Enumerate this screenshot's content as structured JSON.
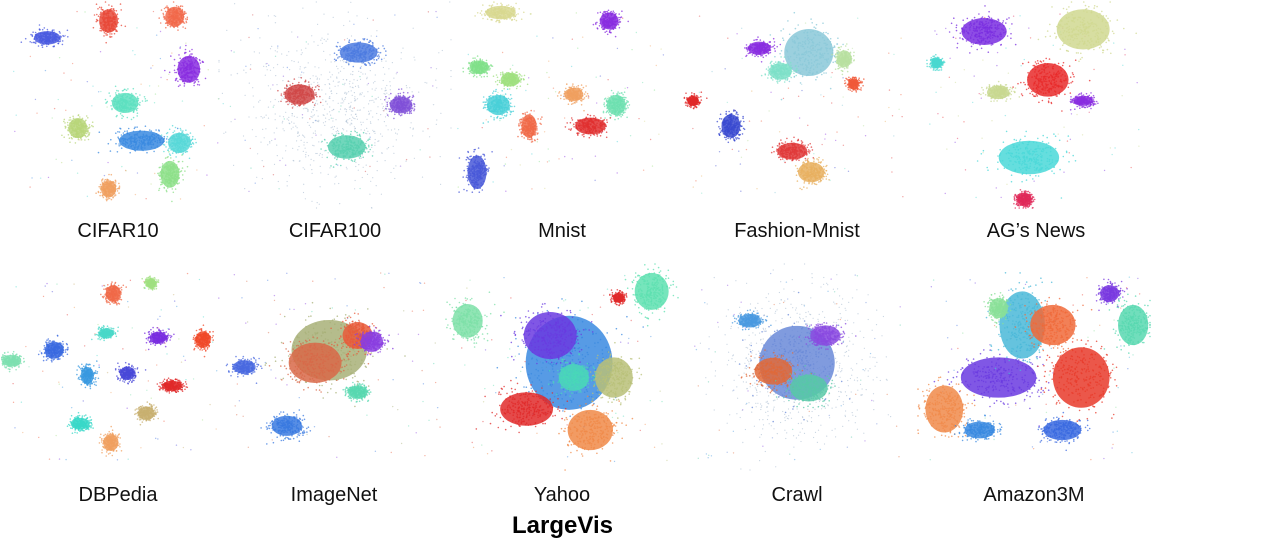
{
  "chart_data": {
    "type": "scatter",
    "title": "LargeVis",
    "panels": [
      {
        "name": "CIFAR10",
        "clusters": [
          {
            "cx": 0.2,
            "cy": 0.18,
            "rx": 0.07,
            "ry": 0.04,
            "color": "#4b5be0"
          },
          {
            "cx": 0.46,
            "cy": 0.1,
            "rx": 0.05,
            "ry": 0.07,
            "color": "#e84a3a"
          },
          {
            "cx": 0.74,
            "cy": 0.08,
            "rx": 0.05,
            "ry": 0.06,
            "color": "#f26a4b"
          },
          {
            "cx": 0.8,
            "cy": 0.33,
            "rx": 0.06,
            "ry": 0.08,
            "color": "#8a2ee0"
          },
          {
            "cx": 0.53,
            "cy": 0.49,
            "rx": 0.07,
            "ry": 0.06,
            "color": "#5ee0c0"
          },
          {
            "cx": 0.33,
            "cy": 0.61,
            "rx": 0.05,
            "ry": 0.06,
            "color": "#b8d67a"
          },
          {
            "cx": 0.6,
            "cy": 0.67,
            "rx": 0.12,
            "ry": 0.06,
            "color": "#3a8ae0"
          },
          {
            "cx": 0.76,
            "cy": 0.68,
            "rx": 0.06,
            "ry": 0.06,
            "color": "#58d8d8"
          },
          {
            "cx": 0.72,
            "cy": 0.83,
            "rx": 0.05,
            "ry": 0.08,
            "color": "#8ee08a"
          },
          {
            "cx": 0.46,
            "cy": 0.9,
            "rx": 0.04,
            "ry": 0.05,
            "color": "#f0a060"
          }
        ]
      },
      {
        "name": "CIFAR100",
        "clusters": [
          {
            "cx": 0.5,
            "cy": 0.5,
            "rx": 0.38,
            "ry": 0.36,
            "color": "#9ab0c8",
            "density": "diffuse"
          },
          {
            "cx": 0.6,
            "cy": 0.25,
            "rx": 0.1,
            "ry": 0.06,
            "color": "#4c7be0"
          },
          {
            "cx": 0.35,
            "cy": 0.45,
            "rx": 0.08,
            "ry": 0.06,
            "color": "#d04848"
          },
          {
            "cx": 0.55,
            "cy": 0.7,
            "rx": 0.1,
            "ry": 0.07,
            "color": "#58d0b0"
          },
          {
            "cx": 0.78,
            "cy": 0.5,
            "rx": 0.06,
            "ry": 0.05,
            "color": "#8050d8"
          }
        ]
      },
      {
        "name": "Mnist",
        "clusters": [
          {
            "cx": 0.24,
            "cy": 0.06,
            "rx": 0.08,
            "ry": 0.04,
            "color": "#d8d890"
          },
          {
            "cx": 0.7,
            "cy": 0.1,
            "rx": 0.05,
            "ry": 0.05,
            "color": "#8a2ee0"
          },
          {
            "cx": 0.15,
            "cy": 0.32,
            "rx": 0.05,
            "ry": 0.04,
            "color": "#80e08a"
          },
          {
            "cx": 0.28,
            "cy": 0.38,
            "rx": 0.05,
            "ry": 0.04,
            "color": "#a0e080"
          },
          {
            "cx": 0.23,
            "cy": 0.5,
            "rx": 0.06,
            "ry": 0.06,
            "color": "#4ad0d8"
          },
          {
            "cx": 0.55,
            "cy": 0.45,
            "rx": 0.05,
            "ry": 0.04,
            "color": "#f0a060"
          },
          {
            "cx": 0.73,
            "cy": 0.5,
            "rx": 0.05,
            "ry": 0.06,
            "color": "#6ee0b0"
          },
          {
            "cx": 0.62,
            "cy": 0.6,
            "rx": 0.08,
            "ry": 0.05,
            "color": "#e03030"
          },
          {
            "cx": 0.36,
            "cy": 0.6,
            "rx": 0.04,
            "ry": 0.07,
            "color": "#f06a48"
          },
          {
            "cx": 0.14,
            "cy": 0.82,
            "rx": 0.05,
            "ry": 0.1,
            "color": "#4858d8"
          }
        ]
      },
      {
        "name": "Fashion-Mnist",
        "clusters": [
          {
            "cx": 0.55,
            "cy": 0.25,
            "rx": 0.13,
            "ry": 0.14,
            "color": "#8ac8d8"
          },
          {
            "cx": 0.34,
            "cy": 0.23,
            "rx": 0.06,
            "ry": 0.04,
            "color": "#8a2ee0"
          },
          {
            "cx": 0.43,
            "cy": 0.34,
            "rx": 0.06,
            "ry": 0.05,
            "color": "#7ee0c8"
          },
          {
            "cx": 0.7,
            "cy": 0.28,
            "rx": 0.04,
            "ry": 0.05,
            "color": "#b8e0a0"
          },
          {
            "cx": 0.74,
            "cy": 0.4,
            "rx": 0.03,
            "ry": 0.03,
            "color": "#f05a3a"
          },
          {
            "cx": 0.06,
            "cy": 0.48,
            "rx": 0.03,
            "ry": 0.03,
            "color": "#e02a2a"
          },
          {
            "cx": 0.22,
            "cy": 0.6,
            "rx": 0.05,
            "ry": 0.07,
            "color": "#3a4ad0"
          },
          {
            "cx": 0.48,
            "cy": 0.72,
            "rx": 0.08,
            "ry": 0.05,
            "color": "#e03a3a"
          },
          {
            "cx": 0.56,
            "cy": 0.82,
            "rx": 0.07,
            "ry": 0.06,
            "color": "#e8b060"
          }
        ]
      },
      {
        "name": "AG’s News",
        "clusters": [
          {
            "cx": 0.28,
            "cy": 0.15,
            "rx": 0.12,
            "ry": 0.08,
            "color": "#7a2ee0"
          },
          {
            "cx": 0.7,
            "cy": 0.14,
            "rx": 0.14,
            "ry": 0.12,
            "color": "#d0d890"
          },
          {
            "cx": 0.55,
            "cy": 0.38,
            "rx": 0.11,
            "ry": 0.1,
            "color": "#e82a2a"
          },
          {
            "cx": 0.08,
            "cy": 0.3,
            "rx": 0.03,
            "ry": 0.03,
            "color": "#4ad8d0"
          },
          {
            "cx": 0.34,
            "cy": 0.44,
            "rx": 0.06,
            "ry": 0.04,
            "color": "#c8d890"
          },
          {
            "cx": 0.7,
            "cy": 0.48,
            "rx": 0.05,
            "ry": 0.03,
            "color": "#8a2ee0"
          },
          {
            "cx": 0.47,
            "cy": 0.75,
            "rx": 0.16,
            "ry": 0.1,
            "color": "#4ad8d8"
          },
          {
            "cx": 0.45,
            "cy": 0.95,
            "rx": 0.04,
            "ry": 0.04,
            "color": "#e02a5a"
          }
        ]
      },
      {
        "name": "DBPedia",
        "clusters": [
          {
            "cx": 0.48,
            "cy": 0.15,
            "rx": 0.04,
            "ry": 0.05,
            "color": "#f06a48"
          },
          {
            "cx": 0.64,
            "cy": 0.1,
            "rx": 0.025,
            "ry": 0.03,
            "color": "#a0e080"
          },
          {
            "cx": 0.45,
            "cy": 0.34,
            "rx": 0.04,
            "ry": 0.03,
            "color": "#4ad8c8"
          },
          {
            "cx": 0.67,
            "cy": 0.36,
            "rx": 0.045,
            "ry": 0.035,
            "color": "#7a2ee0"
          },
          {
            "cx": 0.86,
            "cy": 0.37,
            "rx": 0.04,
            "ry": 0.05,
            "color": "#f04a2a"
          },
          {
            "cx": 0.23,
            "cy": 0.42,
            "rx": 0.05,
            "ry": 0.05,
            "color": "#3a6ae0"
          },
          {
            "cx": 0.05,
            "cy": 0.47,
            "rx": 0.05,
            "ry": 0.035,
            "color": "#7ee0b0"
          },
          {
            "cx": 0.37,
            "cy": 0.54,
            "rx": 0.035,
            "ry": 0.05,
            "color": "#3a9ae0"
          },
          {
            "cx": 0.54,
            "cy": 0.53,
            "rx": 0.04,
            "ry": 0.04,
            "color": "#4a4ad8"
          },
          {
            "cx": 0.73,
            "cy": 0.59,
            "rx": 0.055,
            "ry": 0.03,
            "color": "#e02a2a"
          },
          {
            "cx": 0.62,
            "cy": 0.72,
            "rx": 0.045,
            "ry": 0.04,
            "color": "#c8b070"
          },
          {
            "cx": 0.34,
            "cy": 0.77,
            "rx": 0.05,
            "ry": 0.035,
            "color": "#3ad8c8"
          },
          {
            "cx": 0.47,
            "cy": 0.86,
            "rx": 0.04,
            "ry": 0.05,
            "color": "#f0a060"
          }
        ]
      },
      {
        "name": "ImageNet",
        "clusters": [
          {
            "cx": 0.48,
            "cy": 0.42,
            "rx": 0.2,
            "ry": 0.18,
            "color": "#a8b078"
          },
          {
            "cx": 0.42,
            "cy": 0.48,
            "rx": 0.14,
            "ry": 0.12,
            "color": "#d86848"
          },
          {
            "cx": 0.6,
            "cy": 0.35,
            "rx": 0.08,
            "ry": 0.08,
            "color": "#e85a3a"
          },
          {
            "cx": 0.66,
            "cy": 0.38,
            "rx": 0.06,
            "ry": 0.06,
            "color": "#8a3ee0"
          },
          {
            "cx": 0.3,
            "cy": 0.78,
            "rx": 0.08,
            "ry": 0.06,
            "color": "#3a7ae0"
          },
          {
            "cx": 0.12,
            "cy": 0.5,
            "rx": 0.06,
            "ry": 0.04,
            "color": "#4a6ae0"
          },
          {
            "cx": 0.6,
            "cy": 0.62,
            "rx": 0.05,
            "ry": 0.04,
            "color": "#58d8b0"
          }
        ]
      },
      {
        "name": "Yahoo",
        "clusters": [
          {
            "cx": 0.53,
            "cy": 0.48,
            "rx": 0.23,
            "ry": 0.28,
            "color": "#3a8ae0"
          },
          {
            "cx": 0.45,
            "cy": 0.35,
            "rx": 0.14,
            "ry": 0.14,
            "color": "#6a3ae0"
          },
          {
            "cx": 0.35,
            "cy": 0.7,
            "rx": 0.14,
            "ry": 0.1,
            "color": "#e02a2a"
          },
          {
            "cx": 0.62,
            "cy": 0.8,
            "rx": 0.12,
            "ry": 0.12,
            "color": "#f08a48"
          },
          {
            "cx": 0.72,
            "cy": 0.55,
            "rx": 0.1,
            "ry": 0.12,
            "color": "#b8c078"
          },
          {
            "cx": 0.55,
            "cy": 0.55,
            "rx": 0.08,
            "ry": 0.08,
            "color": "#4ad8b8"
          },
          {
            "cx": 0.88,
            "cy": 0.14,
            "rx": 0.09,
            "ry": 0.11,
            "color": "#5ee0b0"
          },
          {
            "cx": 0.1,
            "cy": 0.28,
            "rx": 0.08,
            "ry": 0.1,
            "color": "#7ee0a8"
          },
          {
            "cx": 0.74,
            "cy": 0.17,
            "rx": 0.03,
            "ry": 0.03,
            "color": "#e02a2a"
          }
        ]
      },
      {
        "name": "Crawl",
        "clusters": [
          {
            "cx": 0.5,
            "cy": 0.5,
            "rx": 0.32,
            "ry": 0.34,
            "color": "#9ab0c8",
            "density": "diffuse"
          },
          {
            "cx": 0.5,
            "cy": 0.48,
            "rx": 0.2,
            "ry": 0.22,
            "color": "#6a8ad8"
          },
          {
            "cx": 0.4,
            "cy": 0.52,
            "rx": 0.1,
            "ry": 0.08,
            "color": "#e06a3a"
          },
          {
            "cx": 0.62,
            "cy": 0.35,
            "rx": 0.08,
            "ry": 0.06,
            "color": "#8a4ae0"
          },
          {
            "cx": 0.55,
            "cy": 0.6,
            "rx": 0.1,
            "ry": 0.08,
            "color": "#58c8a8"
          },
          {
            "cx": 0.3,
            "cy": 0.28,
            "rx": 0.06,
            "ry": 0.04,
            "color": "#4a9ae0"
          }
        ]
      },
      {
        "name": "Amazon3M",
        "clusters": [
          {
            "cx": 0.35,
            "cy": 0.55,
            "rx": 0.2,
            "ry": 0.12,
            "color": "#6a3ae0"
          },
          {
            "cx": 0.45,
            "cy": 0.3,
            "rx": 0.12,
            "ry": 0.2,
            "color": "#4ab8d8"
          },
          {
            "cx": 0.7,
            "cy": 0.55,
            "rx": 0.15,
            "ry": 0.18,
            "color": "#e83a2a"
          },
          {
            "cx": 0.58,
            "cy": 0.3,
            "rx": 0.12,
            "ry": 0.12,
            "color": "#f06a3a"
          },
          {
            "cx": 0.12,
            "cy": 0.7,
            "rx": 0.1,
            "ry": 0.14,
            "color": "#f08a4a"
          },
          {
            "cx": 0.92,
            "cy": 0.3,
            "rx": 0.08,
            "ry": 0.12,
            "color": "#58d8b0"
          },
          {
            "cx": 0.82,
            "cy": 0.15,
            "rx": 0.05,
            "ry": 0.05,
            "color": "#7a3ae0"
          },
          {
            "cx": 0.62,
            "cy": 0.8,
            "rx": 0.1,
            "ry": 0.06,
            "color": "#3a6ae0"
          },
          {
            "cx": 0.27,
            "cy": 0.8,
            "rx": 0.08,
            "ry": 0.05,
            "color": "#3a8ae0"
          },
          {
            "cx": 0.35,
            "cy": 0.22,
            "rx": 0.05,
            "ry": 0.06,
            "color": "#8ae098"
          }
        ]
      }
    ]
  },
  "labels": {
    "p0": "CIFAR10",
    "p1": "CIFAR100",
    "p2": "Mnist",
    "p3": "Fashion-Mnist",
    "p4": "AG’s News",
    "p5": "DBPedia",
    "p6": "ImageNet",
    "p7": "Yahoo",
    "p8": "Crawl",
    "p9": "Amazon3M"
  },
  "method_title": "LargeVis"
}
